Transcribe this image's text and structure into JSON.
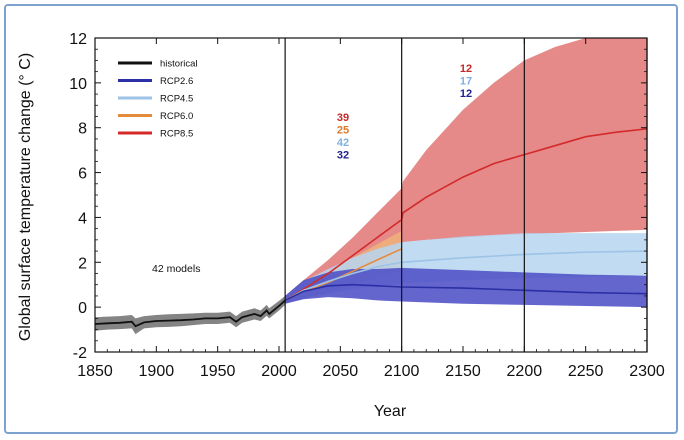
{
  "chart_data": {
    "type": "line",
    "xlabel": "Year",
    "ylabel": "Global surface temperature change (° C)",
    "xlim": [
      1850,
      2300
    ],
    "ylim": [
      -2,
      12
    ],
    "xticks": [
      1850,
      1900,
      1950,
      2000,
      2050,
      2100,
      2150,
      2200,
      2250,
      2300
    ],
    "yticks": [
      -2,
      0,
      2,
      4,
      6,
      8,
      10,
      12
    ],
    "vlines": [
      2005,
      2100,
      2200,
      2300
    ],
    "legend_position": "top-left",
    "annotation": "42 models",
    "series": [
      {
        "name": "historical",
        "color": "#111111",
        "band_color": "#777777",
        "x": [
          1850,
          1860,
          1870,
          1880,
          1883,
          1890,
          1900,
          1910,
          1920,
          1930,
          1940,
          1950,
          1960,
          1965,
          1970,
          1980,
          1985,
          1990,
          1992,
          2000,
          2005
        ],
        "y": [
          -0.75,
          -0.72,
          -0.7,
          -0.65,
          -0.85,
          -0.68,
          -0.62,
          -0.6,
          -0.58,
          -0.55,
          -0.5,
          -0.5,
          -0.45,
          -0.65,
          -0.45,
          -0.3,
          -0.4,
          -0.15,
          -0.3,
          0.05,
          0.3
        ],
        "lower": [
          -1.05,
          -1.0,
          -0.98,
          -0.95,
          -1.2,
          -0.95,
          -0.9,
          -0.88,
          -0.85,
          -0.8,
          -0.75,
          -0.75,
          -0.7,
          -0.9,
          -0.7,
          -0.55,
          -0.62,
          -0.38,
          -0.5,
          -0.15,
          0.1
        ],
        "upper": [
          -0.45,
          -0.42,
          -0.4,
          -0.35,
          -0.5,
          -0.4,
          -0.35,
          -0.32,
          -0.3,
          -0.28,
          -0.25,
          -0.25,
          -0.2,
          -0.4,
          -0.2,
          -0.05,
          -0.15,
          0.1,
          -0.05,
          0.28,
          0.5
        ]
      },
      {
        "name": "RCP2.6",
        "color": "#2b2fa6",
        "band_color": "#4a4bc4",
        "x": [
          2005,
          2020,
          2040,
          2060,
          2080,
          2100,
          2150,
          2200,
          2250,
          2300
        ],
        "y": [
          0.3,
          0.7,
          0.95,
          1.0,
          0.95,
          0.9,
          0.85,
          0.75,
          0.65,
          0.6
        ],
        "lower": [
          0.15,
          0.35,
          0.45,
          0.4,
          0.3,
          0.25,
          0.15,
          0.1,
          0.05,
          0.0
        ],
        "upper": [
          0.5,
          1.2,
          1.55,
          1.7,
          1.7,
          1.75,
          1.65,
          1.55,
          1.45,
          1.4
        ]
      },
      {
        "name": "RCP4.5",
        "color": "#9dc3e6",
        "band_color": "#b6d5f0",
        "x": [
          2005,
          2020,
          2040,
          2060,
          2080,
          2100,
          2150,
          2200,
          2250,
          2300
        ],
        "y": [
          0.3,
          0.75,
          1.15,
          1.5,
          1.8,
          2.0,
          2.2,
          2.35,
          2.45,
          2.5
        ],
        "lower": [
          0.15,
          0.4,
          0.6,
          0.8,
          0.95,
          1.05,
          1.2,
          1.3,
          1.35,
          1.4
        ],
        "upper": [
          0.5,
          1.15,
          1.7,
          2.2,
          2.6,
          2.9,
          3.15,
          3.3,
          3.3,
          3.3
        ]
      },
      {
        "name": "RCP6.0",
        "color": "#e68a3c",
        "band_color": "#f0b27a",
        "x": [
          2005,
          2020,
          2040,
          2060,
          2080,
          2100
        ],
        "y": [
          0.3,
          0.7,
          1.1,
          1.6,
          2.1,
          2.6
        ],
        "lower": [
          0.15,
          0.4,
          0.65,
          1.0,
          1.3,
          1.6
        ],
        "upper": [
          0.5,
          1.05,
          1.6,
          2.2,
          2.8,
          3.4
        ]
      },
      {
        "name": "RCP8.5",
        "color": "#d42a2a",
        "band_color": "#e07474",
        "x": [
          2005,
          2020,
          2040,
          2060,
          2080,
          2100,
          2101,
          2120,
          2150,
          2175,
          2200,
          2225,
          2250,
          2275,
          2300
        ],
        "y": [
          0.3,
          0.8,
          1.5,
          2.3,
          3.1,
          3.9,
          4.2,
          4.9,
          5.8,
          6.4,
          6.8,
          7.2,
          7.6,
          7.8,
          7.95
        ],
        "lower": [
          0.15,
          0.5,
          1.0,
          1.6,
          2.2,
          2.8,
          2.9,
          3.0,
          3.1,
          3.2,
          3.25,
          3.3,
          3.35,
          3.4,
          3.45
        ],
        "upper": [
          0.5,
          1.2,
          2.1,
          3.1,
          4.2,
          5.3,
          5.6,
          7.0,
          8.8,
          10.0,
          11.0,
          11.6,
          12.0,
          12.0,
          12.0
        ]
      }
    ],
    "model_counts": [
      {
        "period": "2006-2100",
        "RCP8.5": "39",
        "RCP6.0": "25",
        "RCP4.5": "42",
        "RCP2.6": "32"
      },
      {
        "period": "2101-2300",
        "RCP8.5": "12",
        "RCP4.5": "17",
        "RCP2.6": "12"
      }
    ]
  }
}
